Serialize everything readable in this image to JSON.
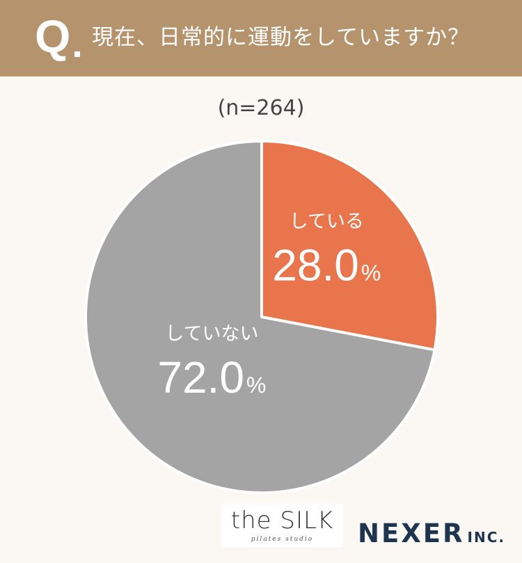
{
  "header": {
    "q_mark": "Q",
    "question": "現在、日常的に運動をしていますか？"
  },
  "sample_size": "(n=264)",
  "chart_data": {
    "type": "pie",
    "categories": [
      "している",
      "していない"
    ],
    "values": [
      28.0,
      72.0
    ],
    "value_labels": [
      "28.0",
      "72.0"
    ],
    "unit": "%",
    "colors": [
      "#e8754b",
      "#a4a4a4"
    ],
    "title": "",
    "start": "12 o'clock, clockwise"
  },
  "logos": {
    "silk_name": "the SILK",
    "silk_sub": "pilates studio",
    "nexer_main": "NEXER",
    "nexer_inc": "INC."
  }
}
